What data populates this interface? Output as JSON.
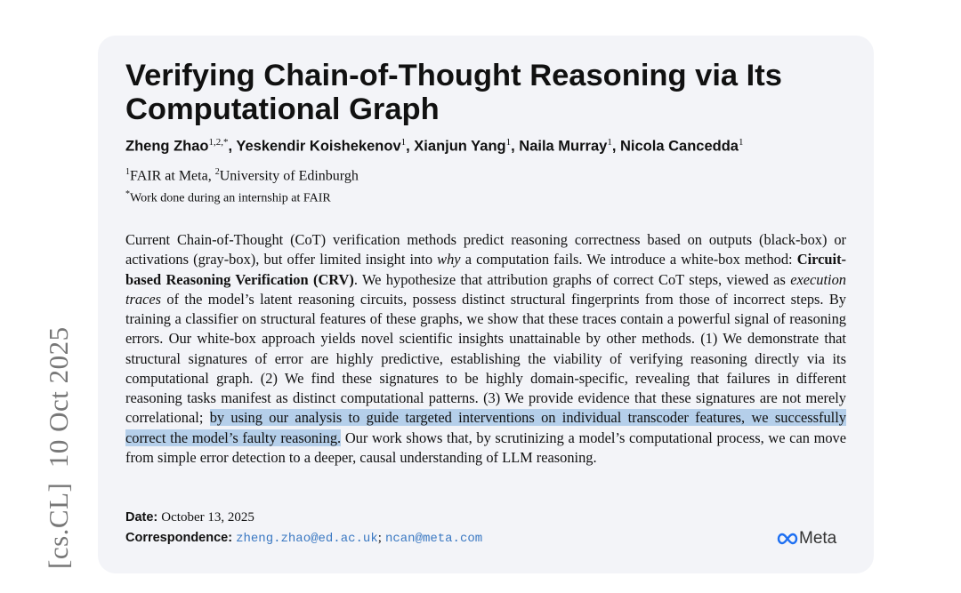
{
  "arxiv_stamp": "[cs.CL]  10 Oct 2025",
  "title": "Verifying Chain-of-Thought Reasoning via Its Computational Graph",
  "authors": [
    {
      "name": "Zheng Zhao",
      "aff": "1,2,*"
    },
    {
      "name": "Yeskendir Koishekenov",
      "aff": "1"
    },
    {
      "name": "Xianjun Yang",
      "aff": "1"
    },
    {
      "name": "Naila Murray",
      "aff": "1"
    },
    {
      "name": "Nicola Cancedda",
      "aff": "1"
    }
  ],
  "affiliations": {
    "a1_mark": "1",
    "a1": "FAIR at Meta, ",
    "a2_mark": "2",
    "a2": "University of Edinburgh"
  },
  "note": {
    "mark": "*",
    "text": "Work done during an internship at FAIR"
  },
  "abstract": {
    "p1": "Current Chain-of-Thought (CoT) verification methods predict reasoning correctness based on outputs (black-box) or activations (gray-box), but offer limited insight into ",
    "why": "why",
    "p2": " a computation fails. We introduce a white-box method: ",
    "bold": "Circuit-based Reasoning Verification (CRV)",
    "p3": ". We hypothesize that attribution graphs of correct CoT steps, viewed as ",
    "exec": "execution traces",
    "p4": " of the model’s latent reasoning circuits, possess distinct structural fingerprints from those of incorrect steps. By training a classifier on structural features of these graphs, we show that these traces contain a powerful signal of reasoning errors. Our white-box approach yields novel scientific insights unattainable by other methods. (1) We demonstrate that structural signatures of error are highly predictive, establishing the viability of verifying reasoning directly via its computational graph. (2) We find these signatures to be highly domain-specific, revealing that failures in different reasoning tasks manifest as distinct computational patterns. (3) We provide evidence that these signatures are not merely correlational; ",
    "highlight": "by using our analysis to guide targeted interventions on individual transcoder features, we successfully correct the model’s faulty reasoning.",
    "p5": " Our work shows that, by scrutinizing a model’s computational process, we can move from simple error detection to a deeper, causal understanding of LLM reasoning."
  },
  "date": {
    "label": "Date:",
    "value": "October 13, 2025"
  },
  "correspondence": {
    "label": "Correspondence:",
    "email1": "zheng.zhao@ed.ac.uk",
    "sep": ";",
    "email2": "ncan@meta.com"
  },
  "logo": {
    "text": "Meta",
    "color": "#1d6ff2"
  },
  "highlight_color": "#b5cfea"
}
